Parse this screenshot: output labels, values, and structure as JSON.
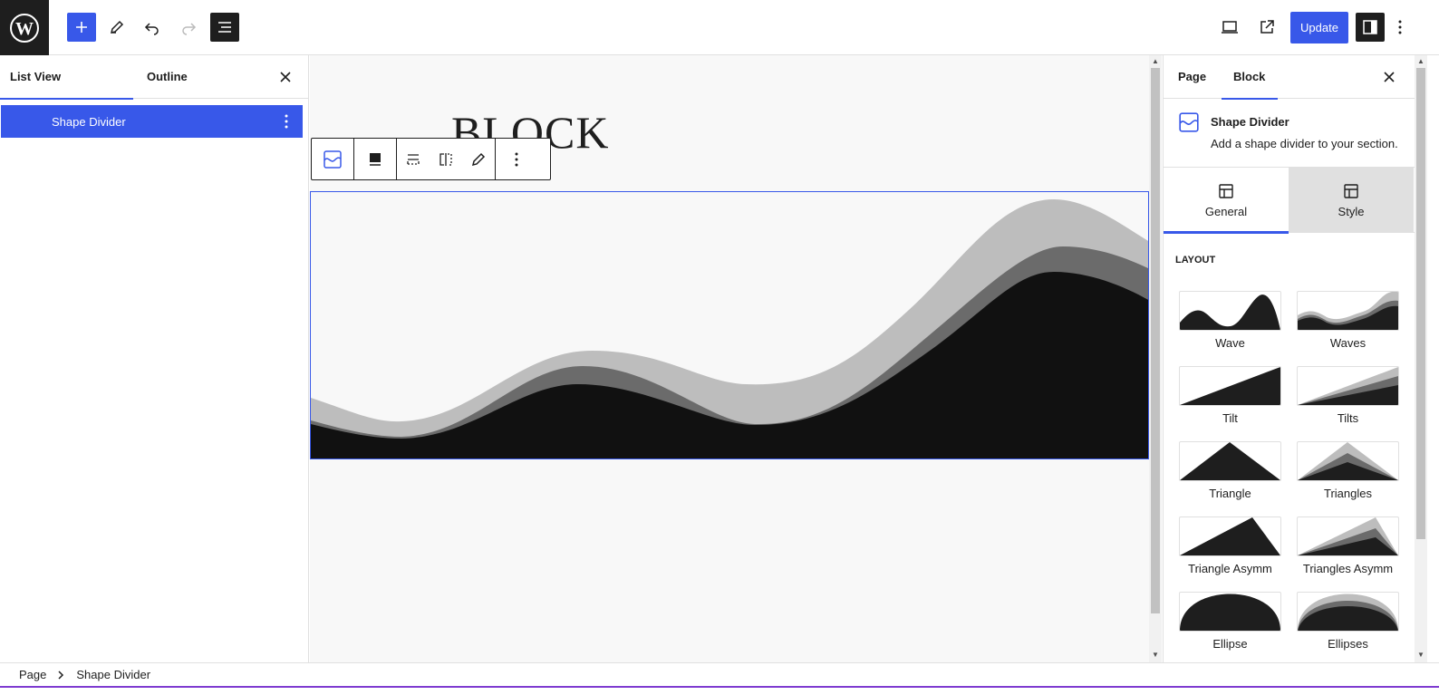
{
  "topbar": {
    "update_label": "Update"
  },
  "left_panel": {
    "tabs": [
      {
        "label": "List View"
      },
      {
        "label": "Outline"
      }
    ],
    "list_items": [
      {
        "label": "Shape Divider"
      }
    ]
  },
  "canvas": {
    "heading": "BLOCK"
  },
  "right_panel": {
    "tabs": [
      {
        "label": "Page"
      },
      {
        "label": "Block"
      }
    ],
    "block_card": {
      "title": "Shape Divider",
      "description": "Add a shape divider to your section."
    },
    "sub_tabs": [
      {
        "label": "General"
      },
      {
        "label": "Style"
      }
    ],
    "section_title": "Layout",
    "layouts": [
      {
        "label": "Wave"
      },
      {
        "label": "Waves"
      },
      {
        "label": "Tilt"
      },
      {
        "label": "Tilts"
      },
      {
        "label": "Triangle"
      },
      {
        "label": "Triangles"
      },
      {
        "label": "Triangle Asymm"
      },
      {
        "label": "Triangles Asymm"
      },
      {
        "label": "Ellipse"
      },
      {
        "label": "Ellipses"
      }
    ]
  },
  "breadcrumb": {
    "items": [
      {
        "label": "Page"
      },
      {
        "label": "Shape Divider"
      }
    ]
  },
  "colors": {
    "accent": "#3858e9",
    "dark": "#1e1e1e",
    "shape_light": "#bdbdbd",
    "shape_mid": "#6b6b6b",
    "shape_dark": "#111111"
  }
}
